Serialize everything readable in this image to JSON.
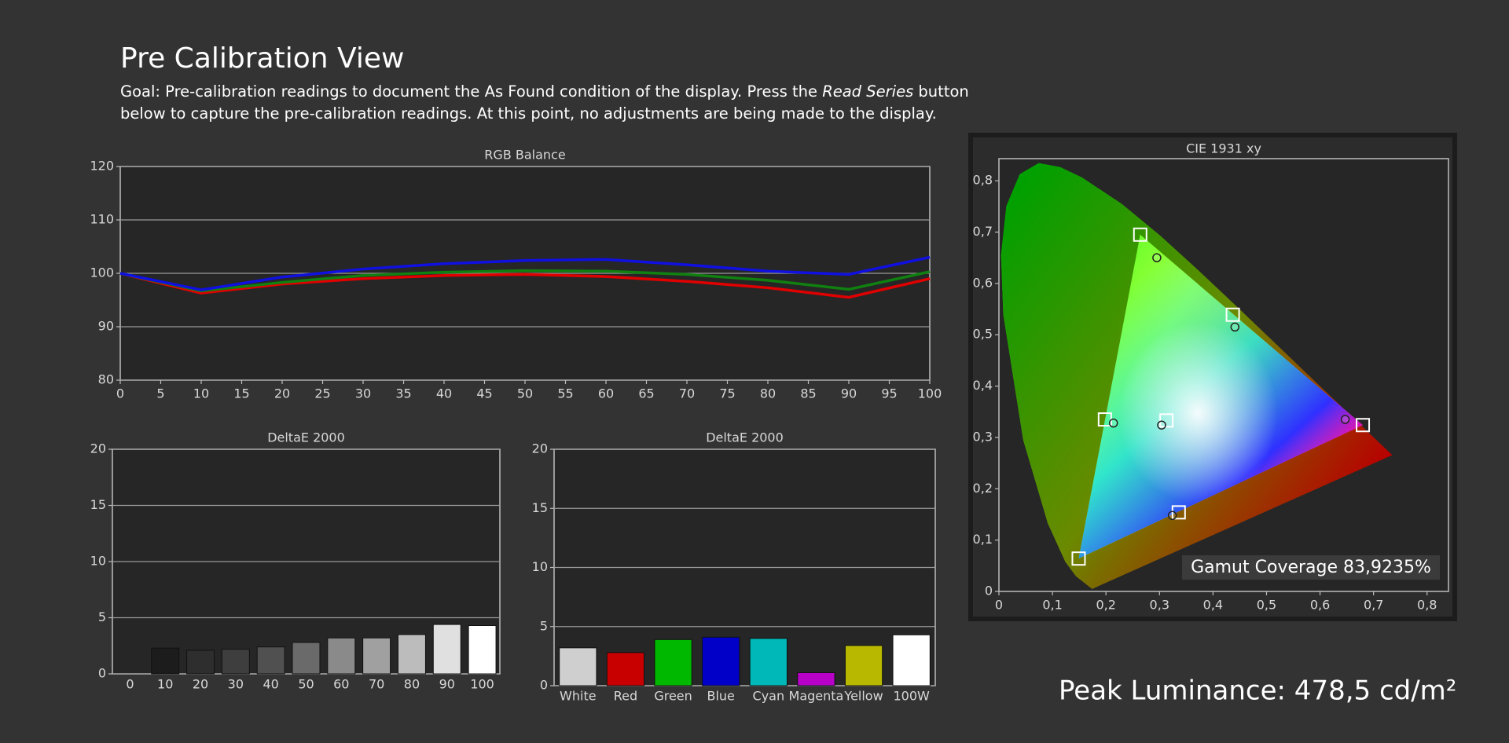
{
  "header": {
    "title": "Pre Calibration View",
    "goal": [
      "Goal: Pre-calibration readings to document the As Found condition of the display. Press the ",
      "Read Series",
      " button below to capture the pre-calibration readings. At this point, no adjustments are being made to the display."
    ]
  },
  "chart_data": [
    {
      "type": "line",
      "title": "RGB Balance",
      "x": [
        0,
        10,
        20,
        30,
        40,
        50,
        60,
        70,
        80,
        90,
        100
      ],
      "series": [
        {
          "color": "#e00000",
          "values": [
            100,
            96.3,
            98,
            99,
            99.6,
            99.8,
            99.4,
            98.5,
            97.3,
            95.5,
            99
          ]
        },
        {
          "color": "#108010",
          "values": [
            100,
            96.7,
            98.3,
            99.6,
            100.2,
            100.5,
            100.4,
            99.8,
            98.7,
            97,
            100.3
          ]
        },
        {
          "color": "#1010e0",
          "values": [
            100,
            96.9,
            99.3,
            100.8,
            101.8,
            102.4,
            102.6,
            101.6,
            100.4,
            99.8,
            103
          ]
        }
      ],
      "xlim": [
        0,
        100
      ],
      "ylim": [
        80,
        120
      ],
      "xticks": [
        0,
        5,
        10,
        15,
        20,
        25,
        30,
        35,
        40,
        45,
        50,
        55,
        60,
        65,
        70,
        75,
        80,
        85,
        90,
        95,
        100
      ],
      "yticks": [
        80,
        90,
        100,
        110,
        120
      ],
      "grid": true
    },
    {
      "type": "bar",
      "title": "DeltaE 2000",
      "categories": [
        "0",
        "10",
        "20",
        "30",
        "40",
        "50",
        "60",
        "70",
        "80",
        "90",
        "100"
      ],
      "values": [
        null,
        2.3,
        2.1,
        2.2,
        2.4,
        2.8,
        3.2,
        3.2,
        3.5,
        4.4,
        4.3
      ],
      "colors": [
        null,
        "#1c1c1c",
        "#2e2e2e",
        "#3e3e3e",
        "#505050",
        "#6a6a6a",
        "#8a8a8a",
        "#a0a0a0",
        "#bcbcbc",
        "#e0e0e0",
        "#ffffff"
      ],
      "ylim": [
        0,
        20
      ],
      "yticks": [
        0,
        5,
        10,
        15,
        20
      ],
      "grid": true
    },
    {
      "type": "bar",
      "title": "DeltaE 2000",
      "categories": [
        "White",
        "Red",
        "Green",
        "Blue",
        "Cyan",
        "Magenta",
        "Yellow",
        "100W"
      ],
      "values": [
        3.2,
        2.8,
        3.9,
        4.1,
        4.0,
        1.1,
        3.4,
        4.3
      ],
      "colors": [
        "#cfcfcf",
        "#c80000",
        "#00b800",
        "#0000c8",
        "#00b8b8",
        "#b800c8",
        "#b8b800",
        "#ffffff"
      ],
      "ylim": [
        0,
        20
      ],
      "yticks": [
        0,
        5,
        10,
        15,
        20
      ],
      "grid": true
    },
    {
      "type": "scatter",
      "title": "CIE 1931 xy",
      "series": [
        {
          "marker": "square",
          "color": "#ffffff",
          "x": [
            0.313,
            0.68,
            0.264,
            0.149,
            0.198,
            0.336,
            0.437
          ],
          "y": [
            0.333,
            0.324,
            0.695,
            0.064,
            0.335,
            0.154,
            0.539
          ]
        },
        {
          "marker": "circle",
          "color": "#222222",
          "x": [
            0.304,
            0.647,
            0.295,
            0.214,
            0.324,
            0.441
          ],
          "y": [
            0.324,
            0.335,
            0.65,
            0.328,
            0.148,
            0.515
          ]
        }
      ],
      "xlim": [
        0,
        0.84
      ],
      "ylim": [
        0,
        0.84
      ],
      "xticks": [
        0,
        {
          "value": 0.1,
          "label": "0,1"
        },
        {
          "value": 0.2,
          "label": "0,2"
        },
        {
          "value": 0.3,
          "label": "0,3"
        },
        {
          "value": 0.4,
          "label": "0,4"
        },
        {
          "value": 0.5,
          "label": "0,5"
        },
        {
          "value": 0.6,
          "label": "0,6"
        },
        {
          "value": 0.7,
          "label": "0,7"
        },
        {
          "value": 0.8,
          "label": "0,8"
        }
      ],
      "yticks": [
        0,
        {
          "value": 0.1,
          "label": "0,1"
        },
        {
          "value": 0.2,
          "label": "0,2"
        },
        {
          "value": 0.3,
          "label": "0,3"
        },
        {
          "value": 0.4,
          "label": "0,4"
        },
        {
          "value": 0.5,
          "label": "0,5"
        },
        {
          "value": 0.6,
          "label": "0,6"
        },
        {
          "value": 0.7,
          "label": "0,7"
        },
        {
          "value": 0.8,
          "label": "0,8"
        }
      ],
      "grid": false
    }
  ],
  "gamut_coverage": "Gamut Coverage 83,9235%",
  "peak_luminance": "Peak Luminance: 478,5 cd/m²"
}
